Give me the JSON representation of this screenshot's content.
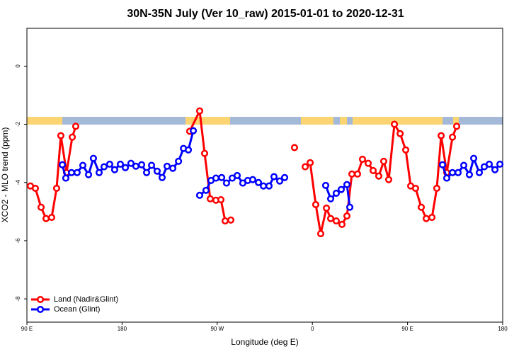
{
  "chart_data": {
    "type": "line",
    "title": "30N-35N July (Ver 10_raw)   2015-01-01 to 2020-12-31",
    "x_label": "Longitude (deg E)",
    "y_label": "XCO2 - MLO trend (ppm)",
    "xlim": [
      90,
      540
    ],
    "ylim": [
      -8.8,
      1.3
    ],
    "xticks": [
      {
        "value": 90,
        "label": "90 E"
      },
      180,
      {
        "value": 270,
        "label": "90 W"
      },
      {
        "value": 360,
        "label": "0"
      },
      {
        "value": 450,
        "label": "90 E"
      },
      {
        "value": 540,
        "label": "180"
      }
    ],
    "yticks": [
      0,
      -2,
      -4,
      -6,
      -8
    ],
    "legend": "bottom-left",
    "series": [
      {
        "name": "Land (Nadir&Glint)",
        "color": "#ff0000",
        "x": [
          93.3,
          98.0,
          103.4,
          108.1,
          113.4,
          118.1,
          122.1,
          127.5,
          132.9,
          136.2,
          200,
          244.0,
          253.4,
          258.1,
          263.4,
          268.8,
          273.5,
          277.5,
          282.9,
          340,
          343.1,
          346,
          353.2,
          357.9,
          363.2,
          367.9,
          373.3,
          377.3,
          382.6,
          388.0,
          392.7,
          397.4,
          402.7,
          407.4,
          412.8,
          417.5,
          422.8,
          427.5,
          432.2,
          437.6,
          443.0,
          448.3,
          453.0,
          457.6,
          463.0,
          467.7,
          473.1,
          477.7,
          481.8,
          487.1,
          492.5,
          496.5
        ],
        "values": [
          -4.12,
          -4.2,
          -4.85,
          -5.24,
          -5.2,
          -4.2,
          -2.39,
          -3.66,
          -2.44,
          -2.07,
          null,
          -2.24,
          -1.54,
          -3.0,
          -4.56,
          -4.61,
          -4.59,
          -5.32,
          -5.29,
          null,
          -2.8,
          null,
          -3.46,
          -3.32,
          -4.76,
          -5.76,
          -4.88,
          -5.24,
          -5.32,
          -5.44,
          -5.15,
          -3.71,
          -3.71,
          -3.2,
          -3.34,
          -3.59,
          -3.78,
          -3.27,
          -3.9,
          -2.0,
          -2.32,
          -2.88,
          -4.12,
          -4.2,
          -4.85,
          -5.24,
          -5.2,
          -4.2,
          -2.39,
          -3.66,
          -2.44,
          -2.07
        ]
      },
      {
        "name": "Ocean (Glint)",
        "color": "#0000ff",
        "x": [
          123.5,
          126.8,
          132.2,
          137.5,
          142.9,
          148.3,
          152.9,
          158.3,
          163.0,
          168.3,
          173.0,
          178.4,
          183.1,
          188.4,
          193.1,
          198.5,
          203.2,
          207.9,
          213.2,
          217.9,
          222.6,
          228.0,
          233.4,
          238.1,
          242.7,
          247.4,
          250,
          253.4,
          259.4,
          264.1,
          268.8,
          274.2,
          278.8,
          284.2,
          288.9,
          294.2,
          298.9,
          303.6,
          309.0,
          313.7,
          319.0,
          323.7,
          329.1,
          333.8,
          350,
          372.6,
          377.3,
          382.6,
          387.3,
          392.7,
          395.4,
          420,
          483.1,
          487.1,
          492.5,
          497.8,
          503.2,
          508.5,
          512.6,
          517.9,
          522.6,
          527.3,
          532.7,
          537.4
        ],
        "values": [
          -3.39,
          -3.85,
          -3.66,
          -3.66,
          -3.41,
          -3.73,
          -3.17,
          -3.66,
          -3.46,
          -3.37,
          -3.56,
          -3.37,
          -3.49,
          -3.34,
          -3.44,
          -3.39,
          -3.66,
          -3.41,
          -3.61,
          -3.83,
          -3.44,
          -3.51,
          -3.27,
          -2.83,
          -2.88,
          -2.22,
          null,
          -4.44,
          -4.27,
          -3.93,
          -3.85,
          -3.83,
          -4.02,
          -3.85,
          -3.76,
          -4.02,
          -3.93,
          -3.9,
          -4.0,
          -4.12,
          -4.12,
          -3.8,
          -3.95,
          -3.83,
          null,
          -4.1,
          -4.56,
          -4.37,
          -4.24,
          -4.07,
          -4.85,
          null,
          -3.39,
          -3.85,
          -3.66,
          -3.66,
          -3.41,
          -3.73,
          -3.17,
          -3.66,
          -3.46,
          -3.37,
          -3.56,
          -3.37
        ]
      }
    ]
  }
}
